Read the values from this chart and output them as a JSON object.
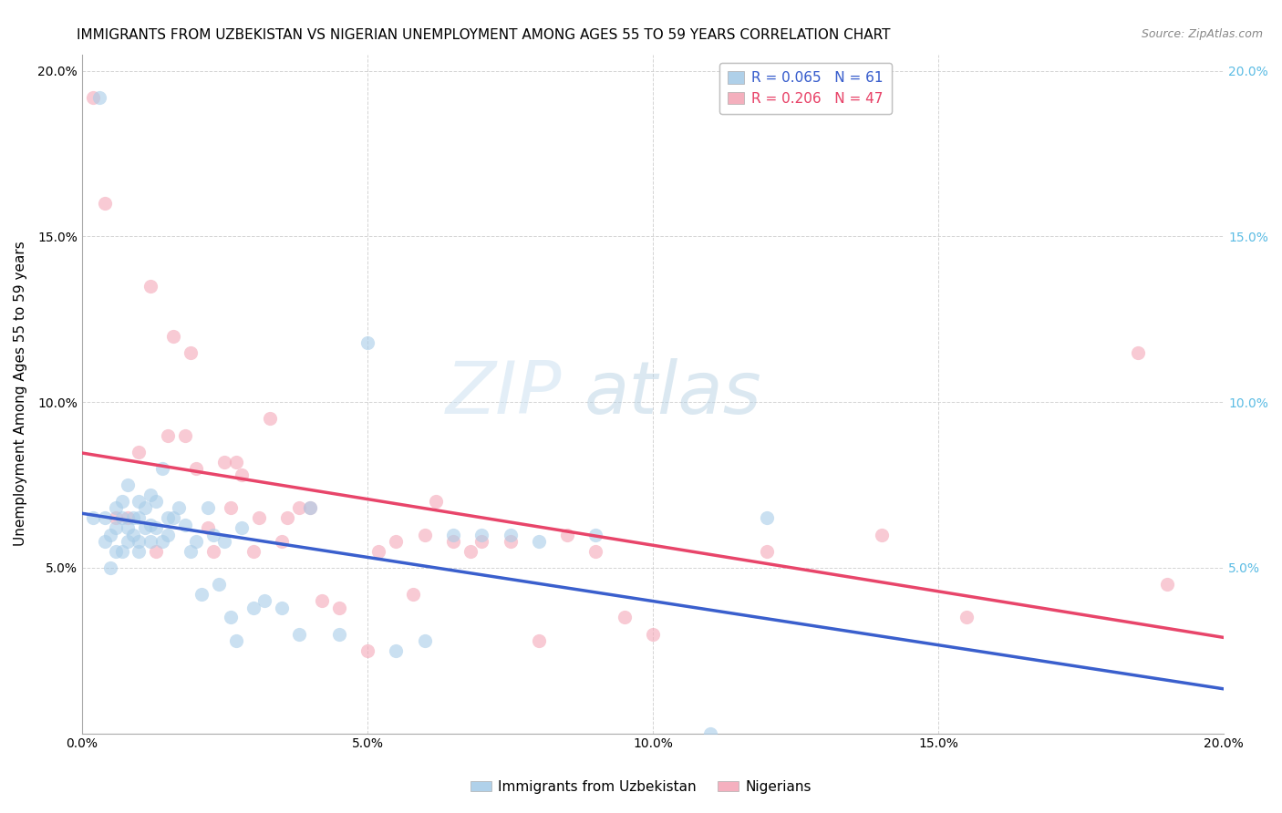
{
  "title": "IMMIGRANTS FROM UZBEKISTAN VS NIGERIAN UNEMPLOYMENT AMONG AGES 55 TO 59 YEARS CORRELATION CHART",
  "source": "Source: ZipAtlas.com",
  "ylabel": "Unemployment Among Ages 55 to 59 years",
  "xlim": [
    0,
    0.2
  ],
  "ylim": [
    0,
    0.205
  ],
  "xtick_vals": [
    0.0,
    0.05,
    0.1,
    0.15,
    0.2
  ],
  "xtick_labels": [
    "0.0%",
    "5.0%",
    "10.0%",
    "15.0%",
    "20.0%"
  ],
  "ytick_vals": [
    0.0,
    0.05,
    0.1,
    0.15,
    0.2
  ],
  "ytick_labels": [
    "",
    "5.0%",
    "10.0%",
    "15.0%",
    "20.0%"
  ],
  "ytick_labels_right": [
    "",
    "5.0%",
    "10.0%",
    "15.0%",
    "20.0%"
  ],
  "watermark_zip": "ZIP",
  "watermark_atlas": "atlas",
  "blue_scatter_x": [
    0.002,
    0.003,
    0.004,
    0.004,
    0.005,
    0.005,
    0.006,
    0.006,
    0.006,
    0.007,
    0.007,
    0.007,
    0.008,
    0.008,
    0.008,
    0.009,
    0.009,
    0.01,
    0.01,
    0.01,
    0.01,
    0.011,
    0.011,
    0.012,
    0.012,
    0.012,
    0.013,
    0.013,
    0.014,
    0.014,
    0.015,
    0.015,
    0.016,
    0.017,
    0.018,
    0.019,
    0.02,
    0.021,
    0.022,
    0.023,
    0.024,
    0.025,
    0.026,
    0.027,
    0.028,
    0.03,
    0.032,
    0.035,
    0.038,
    0.04,
    0.045,
    0.05,
    0.055,
    0.06,
    0.065,
    0.07,
    0.075,
    0.08,
    0.09,
    0.11,
    0.12
  ],
  "blue_scatter_y": [
    0.065,
    0.192,
    0.065,
    0.058,
    0.06,
    0.05,
    0.068,
    0.062,
    0.055,
    0.07,
    0.065,
    0.055,
    0.075,
    0.062,
    0.058,
    0.065,
    0.06,
    0.07,
    0.065,
    0.058,
    0.055,
    0.068,
    0.062,
    0.072,
    0.063,
    0.058,
    0.07,
    0.062,
    0.08,
    0.058,
    0.065,
    0.06,
    0.065,
    0.068,
    0.063,
    0.055,
    0.058,
    0.042,
    0.068,
    0.06,
    0.045,
    0.058,
    0.035,
    0.028,
    0.062,
    0.038,
    0.04,
    0.038,
    0.03,
    0.068,
    0.03,
    0.118,
    0.025,
    0.028,
    0.06,
    0.06,
    0.06,
    0.058,
    0.06,
    0.0,
    0.065
  ],
  "pink_scatter_x": [
    0.002,
    0.004,
    0.006,
    0.008,
    0.01,
    0.012,
    0.013,
    0.015,
    0.016,
    0.018,
    0.019,
    0.02,
    0.022,
    0.023,
    0.025,
    0.026,
    0.027,
    0.028,
    0.03,
    0.031,
    0.033,
    0.035,
    0.036,
    0.038,
    0.04,
    0.042,
    0.045,
    0.05,
    0.052,
    0.055,
    0.058,
    0.06,
    0.062,
    0.065,
    0.068,
    0.07,
    0.075,
    0.08,
    0.085,
    0.09,
    0.095,
    0.1,
    0.12,
    0.14,
    0.155,
    0.185,
    0.19
  ],
  "pink_scatter_y": [
    0.192,
    0.16,
    0.065,
    0.065,
    0.085,
    0.135,
    0.055,
    0.09,
    0.12,
    0.09,
    0.115,
    0.08,
    0.062,
    0.055,
    0.082,
    0.068,
    0.082,
    0.078,
    0.055,
    0.065,
    0.095,
    0.058,
    0.065,
    0.068,
    0.068,
    0.04,
    0.038,
    0.025,
    0.055,
    0.058,
    0.042,
    0.06,
    0.07,
    0.058,
    0.055,
    0.058,
    0.058,
    0.028,
    0.06,
    0.055,
    0.035,
    0.03,
    0.055,
    0.06,
    0.035,
    0.115,
    0.045
  ],
  "blue_dot_color": "#a8cce8",
  "pink_dot_color": "#f4a8b8",
  "blue_line_color": "#3a5fcd",
  "pink_line_color": "#e8456a",
  "right_axis_color": "#5bbce4",
  "grid_color": "#d0d0d0",
  "background_color": "#ffffff",
  "title_fontsize": 11,
  "source_fontsize": 9,
  "axis_label_fontsize": 11,
  "tick_fontsize": 10,
  "legend_fontsize": 11,
  "bottom_legend_items": [
    "Immigrants from Uzbekistan",
    "Nigerians"
  ],
  "scatter_size": 120,
  "scatter_alpha": 0.6,
  "legend_r": [
    "0.065",
    "0.206"
  ],
  "legend_n": [
    "61",
    "47"
  ]
}
